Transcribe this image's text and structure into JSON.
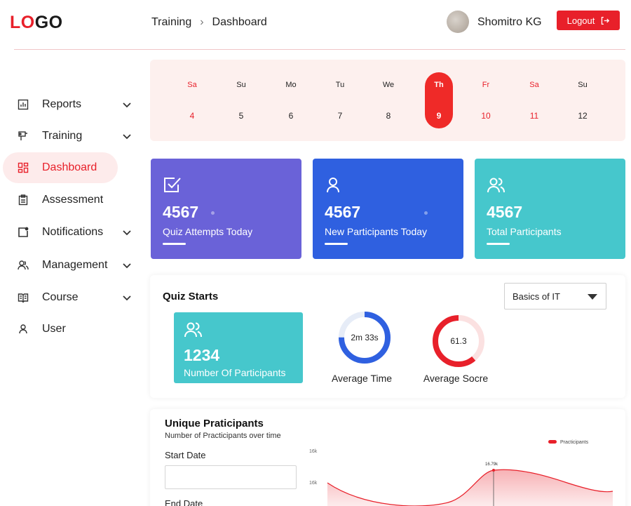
{
  "header": {
    "logo_part1": "LO",
    "logo_part2": "GO",
    "breadcrumb": [
      "Training",
      "Dashboard"
    ],
    "user_name": "Shomitro KG",
    "logout_label": "Logout"
  },
  "sidebar": {
    "items": [
      {
        "label": "Reports",
        "icon": "bar-chart-icon",
        "has_submenu": true
      },
      {
        "label": "Training",
        "icon": "training-icon",
        "has_submenu": true
      },
      {
        "label": "Dashboard",
        "icon": "dashboard-grid-icon",
        "has_submenu": false,
        "active": true
      },
      {
        "label": "Assessment",
        "icon": "clipboard-icon",
        "has_submenu": false
      },
      {
        "label": "Notifications",
        "icon": "notification-icon",
        "has_submenu": true
      },
      {
        "label": "Management",
        "icon": "users-icon",
        "has_submenu": true
      },
      {
        "label": "Course",
        "icon": "book-icon",
        "has_submenu": true
      },
      {
        "label": "User",
        "icon": "user-icon",
        "has_submenu": false
      }
    ]
  },
  "calendar": {
    "days": [
      {
        "name": "Sa",
        "num": "4",
        "weekend": true
      },
      {
        "name": "Su",
        "num": "5",
        "weekend": false
      },
      {
        "name": "Mo",
        "num": "6",
        "weekend": false
      },
      {
        "name": "Tu",
        "num": "7",
        "weekend": false
      },
      {
        "name": "We",
        "num": "8",
        "weekend": false
      },
      {
        "name": "Th",
        "num": "9",
        "weekend": false,
        "selected": true
      },
      {
        "name": "Fr",
        "num": "10",
        "weekend": true
      },
      {
        "name": "Sa",
        "num": "11",
        "weekend": true
      },
      {
        "name": "Su",
        "num": "12",
        "weekend": false
      }
    ]
  },
  "stats": [
    {
      "value": "4567",
      "label": "Quiz Attempts Today",
      "color": "#6a62d8",
      "icon": "check-square-icon"
    },
    {
      "value": "4567",
      "label": "New Participants Today",
      "color": "#2f60e0",
      "icon": "user-icon"
    },
    {
      "value": "4567",
      "label": "Total Participants",
      "color": "#46c7cc",
      "icon": "users-icon"
    }
  ],
  "quiz_starts": {
    "title": "Quiz Starts",
    "course_select": "Basics of IT",
    "participants_value": "1234",
    "participants_label": "Number Of Participants",
    "average_time": "2m 33s",
    "average_time_label": "Average Time",
    "average_time_fill": 0.75,
    "average_score": "61.3",
    "average_score_label": "Average Socre",
    "average_score_fill": 0.613
  },
  "unique": {
    "title": "Unique Praticipants",
    "subtitle": "Number of Practicipants over time",
    "start_date_label": "Start Date",
    "end_date_label": "End Date",
    "start_date_value": "",
    "legend": "Practicipants",
    "y_ticks": [
      "16k",
      "16k"
    ],
    "peak_label": "16.79k"
  },
  "colors": {
    "accent": "#e8202a",
    "calendar_bg": "#fdf0ee"
  }
}
